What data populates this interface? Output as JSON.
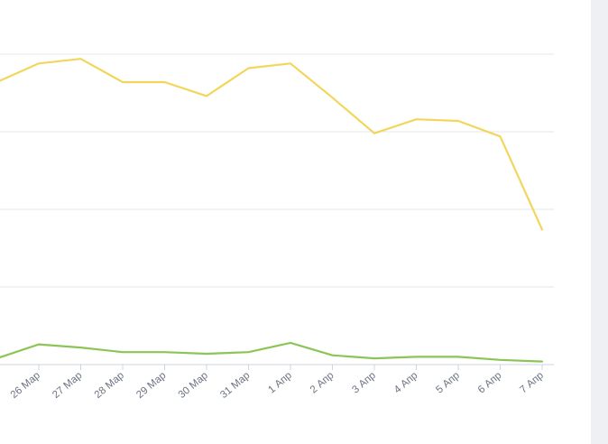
{
  "chart_data": {
    "type": "line",
    "x": [
      "26 Мар",
      "27 Мар",
      "28 Мар",
      "29 Мар",
      "30 Мар",
      "31 Мар",
      "1 Апр",
      "2 Апр",
      "3 Апр",
      "4 Апр",
      "5 Апр",
      "6 Апр",
      "7 Апр"
    ],
    "series": [
      {
        "color": "#f2d65c",
        "values_before_first_label": [
          82
        ],
        "values": [
          94,
          97,
          82,
          82,
          73,
          91,
          94,
          72,
          49,
          58,
          57,
          47,
          -13
        ]
      },
      {
        "color": "#8cc556",
        "values_before_first_label": [
          -96
        ],
        "values": [
          -87,
          -89,
          -92,
          -92,
          -93,
          -92,
          -86,
          -94,
          -96,
          -95,
          -95,
          -97,
          -98
        ]
      }
    ],
    "grid": true,
    "legend": "none",
    "ylim": [
      -100,
      100
    ]
  }
}
